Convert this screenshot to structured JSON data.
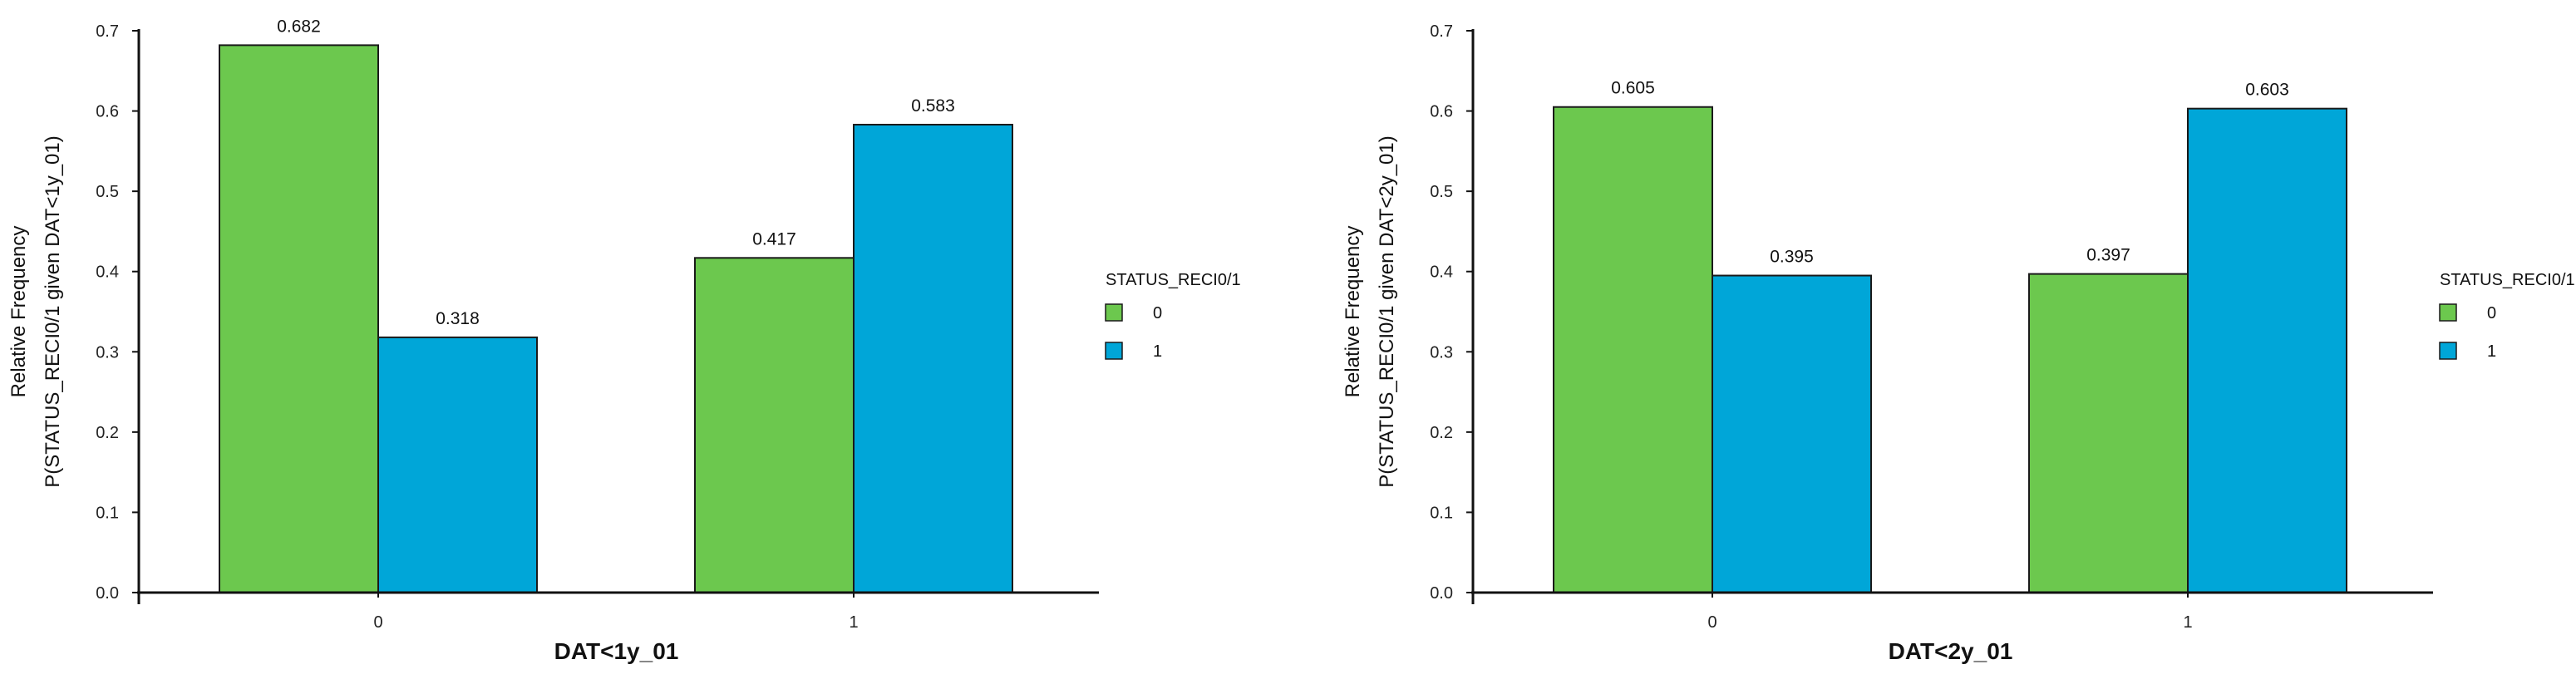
{
  "chart_data": [
    {
      "type": "bar",
      "categories": [
        "0",
        "1"
      ],
      "xlabel": "DAT<1y_01",
      "ylabel_line1": "Relative  Frequency",
      "ylabel_line2": "P(STATUS_RECI0/1 given DAT<1y_01)",
      "ylim": [
        0,
        0.7
      ],
      "yticks": [
        "0.0",
        "0.1",
        "0.2",
        "0.3",
        "0.4",
        "0.5",
        "0.6",
        "0.7"
      ],
      "legend_title": "STATUS_RECI0/1",
      "legend_position": "right",
      "series": [
        {
          "name": "0",
          "color": "#6cc84e",
          "values": [
            0.682,
            0.417
          ],
          "labels": [
            "0.682",
            "0.417"
          ]
        },
        {
          "name": "1",
          "color": "#00a6d8",
          "values": [
            0.318,
            0.583
          ],
          "labels": [
            "0.318",
            "0.583"
          ]
        }
      ]
    },
    {
      "type": "bar",
      "categories": [
        "0",
        "1"
      ],
      "xlabel": "DAT<2y_01",
      "ylabel_line1": "Relative  Frequency",
      "ylabel_line2": "P(STATUS_RECI0/1 given DAT<2y_01)",
      "ylim": [
        0,
        0.7
      ],
      "yticks": [
        "0.0",
        "0.1",
        "0.2",
        "0.3",
        "0.4",
        "0.5",
        "0.6",
        "0.7"
      ],
      "legend_title": "STATUS_RECI0/1",
      "legend_position": "right",
      "series": [
        {
          "name": "0",
          "color": "#6cc84e",
          "values": [
            0.605,
            0.397
          ],
          "labels": [
            "0.605",
            "0.397"
          ]
        },
        {
          "name": "1",
          "color": "#00a6d8",
          "values": [
            0.395,
            0.603
          ],
          "labels": [
            "0.395",
            "0.603"
          ]
        }
      ]
    }
  ]
}
